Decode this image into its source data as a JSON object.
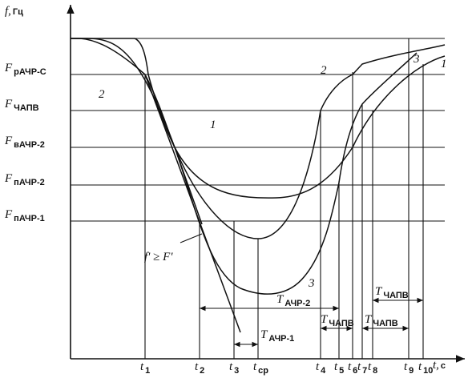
{
  "axes": {
    "y_label": {
      "main": "f,",
      "unit": "Гц"
    },
    "x_label": {
      "main": "t,",
      "unit": "с"
    }
  },
  "levels": [
    {
      "main": "F",
      "sub": "рАЧР-С"
    },
    {
      "main": "F",
      "sub": "ЧАПВ"
    },
    {
      "main": "F",
      "sub": "вАЧР-2"
    },
    {
      "main": "F",
      "sub": "пАЧР-2"
    },
    {
      "main": "F",
      "sub": "пАЧР-1"
    }
  ],
  "times": [
    {
      "main": "t",
      "sub": "1"
    },
    {
      "main": "t",
      "sub": "2"
    },
    {
      "main": "t",
      "sub": "3"
    },
    {
      "main": "t",
      "sub": "ср"
    },
    {
      "main": "t",
      "sub": "4"
    },
    {
      "main": "t",
      "sub": "5"
    },
    {
      "main": "t",
      "sub": "6"
    },
    {
      "main": "t",
      "sub": "7"
    },
    {
      "main": "t",
      "sub": "8"
    },
    {
      "main": "t",
      "sub": "9"
    },
    {
      "main": "t",
      "sub": "10"
    }
  ],
  "curves": [
    "1",
    "2",
    "3"
  ],
  "derivative_label": "f' ≥ F'",
  "intervals": [
    {
      "main": "T",
      "sub": "АЧР-2"
    },
    {
      "main": "T",
      "sub": "АЧР-1"
    },
    {
      "main": "T",
      "sub": "ЧАПВ"
    },
    {
      "main": "T",
      "sub": "ЧАПВ"
    },
    {
      "main": "T",
      "sub": "ЧАПВ"
    }
  ]
}
